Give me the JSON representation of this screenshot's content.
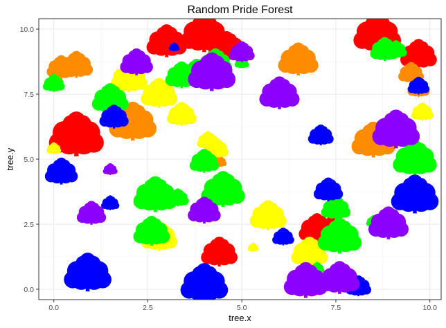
{
  "chart_data": {
    "type": "scatter",
    "title": "Random Pride Forest",
    "xlabel": "tree.x",
    "ylabel": "tree.y",
    "xlim": [
      -0.4,
      10.3
    ],
    "ylim": [
      -0.4,
      10.4
    ],
    "xticks": [
      0.0,
      2.5,
      5.0,
      7.5,
      10.0
    ],
    "xtick_labels": [
      "0.0",
      "2.5",
      "5.0",
      "7.5",
      "10.0"
    ],
    "yticks": [
      0.0,
      2.5,
      5.0,
      7.5,
      10.0
    ],
    "ytick_labels": [
      "0.0",
      "2.5",
      "5.0",
      "7.5",
      "10.0"
    ],
    "grid": true,
    "marker": "tree-icon",
    "colors": {
      "red": "#ff0000",
      "orange": "#ff8c00",
      "yellow": "#ffff00",
      "green": "#00ff00",
      "blue": "#0000ff",
      "purple": "#8b00ff"
    },
    "points": [
      {
        "x": 3.0,
        "y": 9.5,
        "color": "red",
        "size": 1.1
      },
      {
        "x": 4.0,
        "y": 9.8,
        "color": "red",
        "size": 1.3
      },
      {
        "x": 4.6,
        "y": 9.3,
        "color": "red",
        "size": 1.0
      },
      {
        "x": 8.6,
        "y": 9.8,
        "color": "red",
        "size": 1.3
      },
      {
        "x": 9.7,
        "y": 9.0,
        "color": "red",
        "size": 1.0
      },
      {
        "x": 0.6,
        "y": 5.9,
        "color": "red",
        "size": 1.5
      },
      {
        "x": 4.4,
        "y": 1.4,
        "color": "red",
        "size": 1.0
      },
      {
        "x": 7.0,
        "y": 2.3,
        "color": "red",
        "size": 1.0
      },
      {
        "x": 7.4,
        "y": 2.2,
        "color": "red",
        "size": 1.0
      },
      {
        "x": 0.2,
        "y": 8.5,
        "color": "orange",
        "size": 0.8
      },
      {
        "x": 0.6,
        "y": 8.6,
        "color": "orange",
        "size": 0.9
      },
      {
        "x": 2.1,
        "y": 6.4,
        "color": "orange",
        "size": 1.3
      },
      {
        "x": 6.5,
        "y": 8.8,
        "color": "orange",
        "size": 1.1
      },
      {
        "x": 8.5,
        "y": 5.7,
        "color": "orange",
        "size": 1.2
      },
      {
        "x": 9.5,
        "y": 8.3,
        "color": "orange",
        "size": 0.7
      },
      {
        "x": 9.7,
        "y": 7.7,
        "color": "orange",
        "size": 0.6
      },
      {
        "x": 4.4,
        "y": 4.9,
        "color": "orange",
        "size": 0.4
      },
      {
        "x": 2.0,
        "y": 8.1,
        "color": "yellow",
        "size": 1.0
      },
      {
        "x": 2.8,
        "y": 7.5,
        "color": "yellow",
        "size": 1.0
      },
      {
        "x": 3.4,
        "y": 6.7,
        "color": "yellow",
        "size": 0.8
      },
      {
        "x": 4.1,
        "y": 5.7,
        "color": "yellow",
        "size": 0.6
      },
      {
        "x": 4.3,
        "y": 5.4,
        "color": "yellow",
        "size": 0.7
      },
      {
        "x": 5.7,
        "y": 2.8,
        "color": "yellow",
        "size": 1.0
      },
      {
        "x": 6.8,
        "y": 1.4,
        "color": "yellow",
        "size": 1.0
      },
      {
        "x": 2.8,
        "y": 2.0,
        "color": "yellow",
        "size": 1.0
      },
      {
        "x": 9.8,
        "y": 6.8,
        "color": "yellow",
        "size": 0.6
      },
      {
        "x": 0.0,
        "y": 5.4,
        "color": "yellow",
        "size": 0.4
      },
      {
        "x": 5.3,
        "y": 1.6,
        "color": "yellow",
        "size": 0.3
      },
      {
        "x": 0.0,
        "y": 7.9,
        "color": "green",
        "size": 0.6
      },
      {
        "x": 1.5,
        "y": 7.3,
        "color": "green",
        "size": 1.0
      },
      {
        "x": 3.8,
        "y": 8.3,
        "color": "green",
        "size": 0.9
      },
      {
        "x": 3.4,
        "y": 8.2,
        "color": "green",
        "size": 0.9
      },
      {
        "x": 4.3,
        "y": 8.7,
        "color": "green",
        "size": 0.9
      },
      {
        "x": 5.0,
        "y": 8.7,
        "color": "green",
        "size": 0.4
      },
      {
        "x": 8.8,
        "y": 9.2,
        "color": "green",
        "size": 0.8
      },
      {
        "x": 9.1,
        "y": 9.2,
        "color": "green",
        "size": 0.6
      },
      {
        "x": 2.7,
        "y": 3.6,
        "color": "green",
        "size": 1.2
      },
      {
        "x": 3.3,
        "y": 3.5,
        "color": "green",
        "size": 0.6
      },
      {
        "x": 4.5,
        "y": 3.8,
        "color": "green",
        "size": 1.2
      },
      {
        "x": 4.0,
        "y": 4.9,
        "color": "green",
        "size": 0.8
      },
      {
        "x": 2.6,
        "y": 2.2,
        "color": "green",
        "size": 1.0
      },
      {
        "x": 7.5,
        "y": 3.1,
        "color": "green",
        "size": 0.8
      },
      {
        "x": 7.6,
        "y": 2.0,
        "color": "green",
        "size": 1.2
      },
      {
        "x": 9.6,
        "y": 5.0,
        "color": "green",
        "size": 1.2
      },
      {
        "x": 0.2,
        "y": 4.3,
        "color": "green",
        "size": 0.4
      },
      {
        "x": 8.5,
        "y": 2.6,
        "color": "green",
        "size": 0.4
      },
      {
        "x": 7.0,
        "y": 0.8,
        "color": "green",
        "size": 0.4
      },
      {
        "x": 3.2,
        "y": 9.3,
        "color": "blue",
        "size": 0.3
      },
      {
        "x": 1.6,
        "y": 6.6,
        "color": "blue",
        "size": 0.8
      },
      {
        "x": 0.2,
        "y": 4.5,
        "color": "blue",
        "size": 0.9
      },
      {
        "x": 1.5,
        "y": 3.3,
        "color": "blue",
        "size": 0.5
      },
      {
        "x": 7.1,
        "y": 5.9,
        "color": "blue",
        "size": 0.7
      },
      {
        "x": 7.3,
        "y": 3.8,
        "color": "blue",
        "size": 0.8
      },
      {
        "x": 6.1,
        "y": 2.0,
        "color": "blue",
        "size": 0.6
      },
      {
        "x": 9.6,
        "y": 3.6,
        "color": "blue",
        "size": 1.3
      },
      {
        "x": 9.7,
        "y": 7.8,
        "color": "blue",
        "size": 0.6
      },
      {
        "x": 0.9,
        "y": 0.6,
        "color": "blue",
        "size": 1.3
      },
      {
        "x": 4.0,
        "y": 0.2,
        "color": "blue",
        "size": 1.3
      },
      {
        "x": 8.1,
        "y": 0.1,
        "color": "blue",
        "size": 0.7
      },
      {
        "x": 2.2,
        "y": 8.7,
        "color": "purple",
        "size": 0.9
      },
      {
        "x": 4.2,
        "y": 8.3,
        "color": "purple",
        "size": 1.3
      },
      {
        "x": 5.0,
        "y": 9.1,
        "color": "purple",
        "size": 0.7
      },
      {
        "x": 6.0,
        "y": 7.5,
        "color": "purple",
        "size": 1.1
      },
      {
        "x": 9.1,
        "y": 6.1,
        "color": "purple",
        "size": 1.3
      },
      {
        "x": 1.5,
        "y": 4.6,
        "color": "purple",
        "size": 0.4
      },
      {
        "x": 1.0,
        "y": 2.9,
        "color": "purple",
        "size": 0.8
      },
      {
        "x": 4.0,
        "y": 3.0,
        "color": "purple",
        "size": 0.9
      },
      {
        "x": 8.9,
        "y": 2.5,
        "color": "purple",
        "size": 1.1
      },
      {
        "x": 6.7,
        "y": 0.3,
        "color": "purple",
        "size": 1.2
      },
      {
        "x": 7.6,
        "y": 0.4,
        "color": "purple",
        "size": 1.1
      },
      {
        "x": 7.8,
        "y": 0.6,
        "color": "purple",
        "size": 0.3
      }
    ]
  }
}
